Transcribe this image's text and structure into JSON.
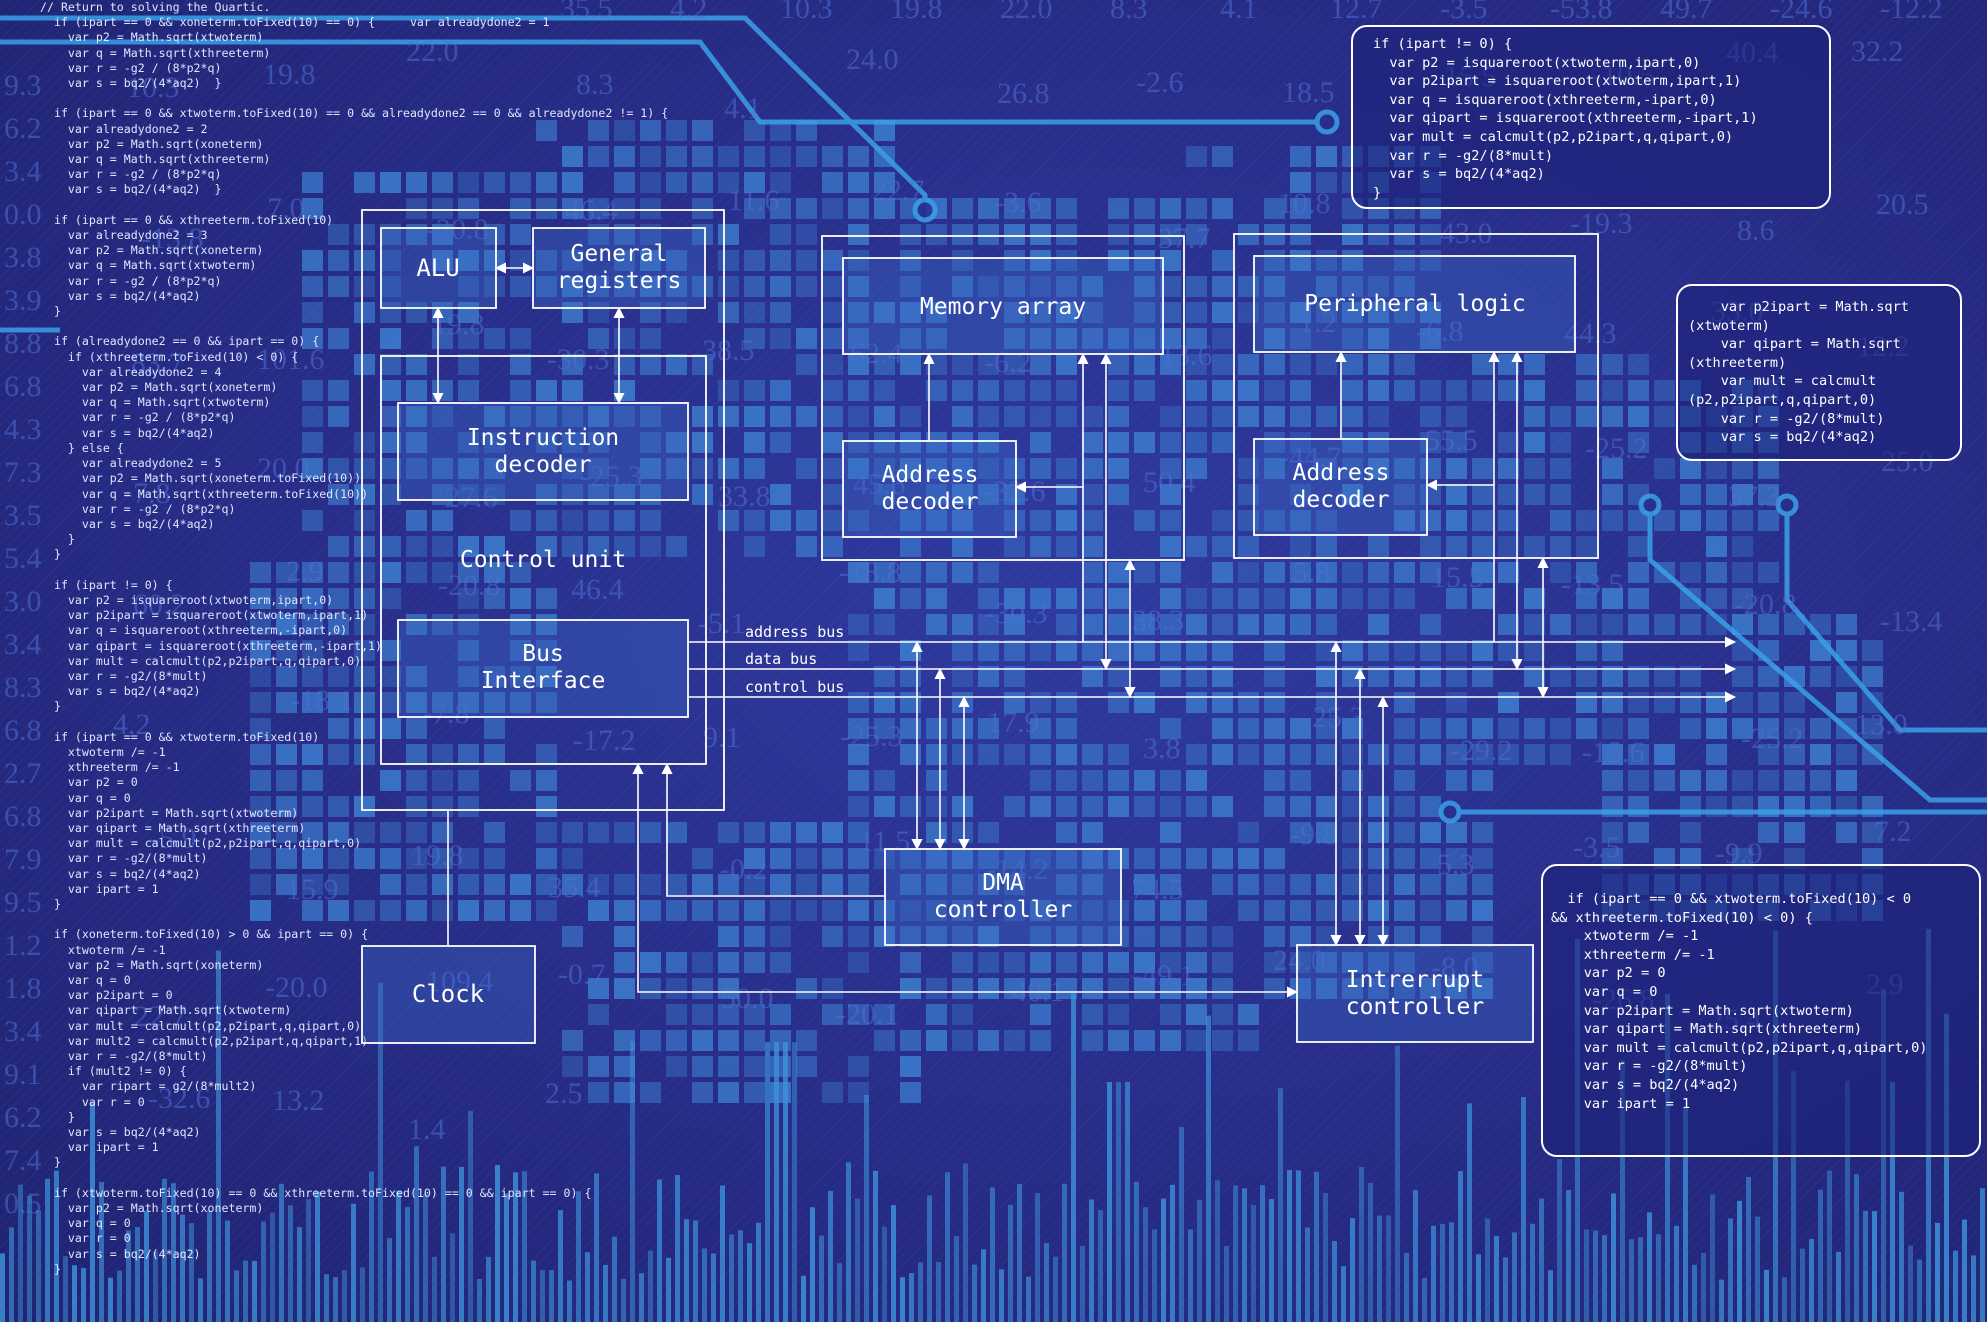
{
  "diagram": {
    "blocks": {
      "alu": "ALU",
      "general_registers": [
        "General",
        "registers"
      ],
      "instruction_decoder": [
        "Instruction",
        "decoder"
      ],
      "control_unit": "Control unit",
      "bus_interface": [
        "Bus",
        "Interface"
      ],
      "memory_array": "Memory array",
      "address_decoder_memory": [
        "Address",
        "decoder"
      ],
      "peripheral_logic": "Peripheral logic",
      "address_decoder_peripheral": [
        "Address",
        "decoder"
      ],
      "dma_controller": [
        "DMA",
        "controller"
      ],
      "clock": "Clock",
      "interrupt_controller": [
        "Intrerrupt",
        "controller"
      ]
    },
    "buses": {
      "address": "address bus",
      "data": "data bus",
      "control": "control bus"
    }
  },
  "code": {
    "left_panel": [
      "// Return to solving the Quartic.",
      "  if (ipart == 0 && xoneterm.toFixed(10) == 0) {     var alreadydone2 = 1",
      "    var p2 = Math.sqrt(xtwoterm)",
      "    var q = Math.sqrt(xthreeterm)",
      "    var r = -g2 / (8*p2*q)",
      "    var s = bq2/(4*aq2)  }",
      "",
      "  if (ipart == 0 && xtwoterm.toFixed(10) == 0 && alreadydone2 == 0 && alreadydone2 != 1) {",
      "    var alreadydone2 = 2",
      "    var p2 = Math.sqrt(xoneterm)",
      "    var q = Math.sqrt(xthreeterm)",
      "    var r = -g2 / (8*p2*q)",
      "    var s = bq2/(4*aq2)  }",
      "",
      "  if (ipart == 0 && xthreeterm.toFixed(10)",
      "    var alreadydone2 = 3",
      "    var p2 = Math.sqrt(xoneterm)",
      "    var q = Math.sqrt(xtwoterm)",
      "    var r = -g2 / (8*p2*q)",
      "    var s = bq2/(4*aq2)",
      "  }",
      "",
      "  if (alreadydone2 == 0 && ipart == 0) {",
      "    if (xthreeterm.toFixed(10) < 0) {",
      "      var alreadydone2 = 4",
      "      var p2 = Math.sqrt(xoneterm)",
      "      var q = Math.sqrt(xtwoterm)",
      "      var r = -g2 / (8*p2*q)",
      "      var s = bq2/(4*aq2)",
      "    } else {",
      "      var alreadydone2 = 5",
      "      var p2 = Math.sqrt(xoneterm.toFixed(10))",
      "      var q = Math.sqrt(xthreeterm.toFixed(10))",
      "      var r = -g2 / (8*p2*q)",
      "      var s = bq2/(4*aq2)",
      "    }",
      "  }",
      "",
      "  if (ipart != 0) {",
      "    var p2 = isquareroot(xtwoterm,ipart,0)",
      "    var p2ipart = isquareroot(xtwoterm,ipart,1)",
      "    var q = isquareroot(xthreeterm,-ipart,0)",
      "    var qipart = isquareroot(xthreeterm,-ipart,1)",
      "    var mult = calcmult(p2,p2ipart,q,qipart,0)",
      "    var r = -g2/(8*mult)",
      "    var s = bq2/(4*aq2)",
      "  }",
      "",
      "  if (ipart == 0 && xtwoterm.toFixed(10)",
      "    xtwoterm /= -1",
      "    xthreeterm /= -1",
      "    var p2 = 0",
      "    var q = 0",
      "    var p2ipart = Math.sqrt(xtwoterm)",
      "    var qipart = Math.sqrt(xthreeterm)",
      "    var mult = calcmult(p2,p2ipart,q,qipart,0)",
      "    var r = -g2/(8*mult)",
      "    var s = bq2/(4*aq2)",
      "    var ipart = 1",
      "  }",
      "",
      "  if (xoneterm.toFixed(10) > 0 && ipart == 0) {",
      "    xtwoterm /= -1",
      "    var p2 = Math.sqrt(xoneterm)",
      "    var q = 0",
      "    var p2ipart = 0",
      "    var qipart = Math.sqrt(xtwoterm)",
      "    var mult = calcmult(p2,p2ipart,q,qipart,0)",
      "    var mult2 = calcmult(p2,p2ipart,q,qipart,1)",
      "    var r = -g2/(8*mult)",
      "    if (mult2 != 0) {",
      "      var ripart = g2/(8*mult2)",
      "      var r = 0",
      "    }",
      "    var s = bq2/(4*aq2)",
      "    var ipart = 1",
      "  }",
      "",
      "  if (xtwoterm.toFixed(10) == 0 && xthreeterm.toFixed(10) == 0 && ipart == 0) {",
      "    var p2 = Math.sqrt(xoneterm)",
      "    var q = 0",
      "    var r = 0",
      "    var s = bq2/(4*aq2)",
      "  }"
    ],
    "box_top_right": [
      "if (ipart != 0) {",
      "  var p2 = isquareroot(xtwoterm,ipart,0)",
      "  var p2ipart = isquareroot(xtwoterm,ipart,1)",
      "  var q = isquareroot(xthreeterm,-ipart,0)",
      "  var qipart = isquareroot(xthreeterm,-ipart,1)",
      "  var mult = calcmult(p2,p2ipart,q,qipart,0)",
      "  var r = -g2/(8*mult)",
      "  var s = bq2/(4*aq2)",
      "}"
    ],
    "box_mid_right": [
      "    var p2ipart = Math.sqrt",
      "(xtwoterm)",
      "    var qipart = Math.sqrt",
      "(xthreeterm)",
      "    var mult = calcmult",
      "(p2,p2ipart,q,qipart,0)",
      "    var r = -g2/(8*mult)",
      "    var s = bq2/(4*aq2)"
    ],
    "box_bottom_right": [
      "  if (ipart == 0 && xtwoterm.toFixed(10) < 0",
      "&& xthreeterm.toFixed(10) < 0) {",
      "    xtwoterm /= -1",
      "    xthreeterm /= -1",
      "    var p2 = 0",
      "    var q = 0",
      "    var p2ipart = Math.sqrt(xtwoterm)",
      "    var qipart = Math.sqrt(xthreeterm)",
      "    var mult = calcmult(p2,p2ipart,q,qipart,0)",
      "    var r = -g2/(8*mult)",
      "    var s = bq2/(4*aq2)",
      "    var ipart = 1"
    ]
  },
  "background_numbers": {
    "left_column": [
      "9.3",
      "6.2",
      "3.4",
      "0.0",
      "3.8",
      "3.9",
      "8.8",
      "6.8",
      "4.3",
      "7.3",
      "3.5",
      "5.4",
      "3.0",
      "3.4",
      "8.3",
      "6.8",
      "2.7",
      "6.8",
      "7.9",
      "9.5",
      "1.2",
      "1.8",
      "3.4",
      "9.1",
      "6.2",
      "7.4",
      "0.5"
    ],
    "scattered": [
      "10.3",
      "19.8",
      "22.0",
      "8.3",
      "4.1",
      "24.0",
      "26.8",
      "-2.6",
      "18.5",
      "15.5",
      "-10.5",
      "40.4",
      "32.2",
      "-13.8",
      "7.0",
      "-20.8",
      "46.4",
      "11.6",
      "22.7",
      "-3.6",
      "37.7",
      "10.8",
      "43.0",
      "-19.3",
      "8.6",
      "20.5",
      "83.7",
      "101.6",
      "19.8",
      "-30.3",
      "38.5",
      "62.4",
      "-6.2",
      "13.6",
      "1.2",
      "-6.8",
      "44.3",
      "33.0",
      "12.2",
      "-7.8",
      "20.0",
      "-27.6",
      "-25.3",
      "33.8",
      "45.6",
      "-32.6",
      "50.4",
      "-44.7",
      "55.5",
      "-25.2",
      "37.3",
      "25.0",
      "60.2",
      "2.9",
      "-20.8",
      "46.4",
      "-5.1",
      "-18.8",
      "-30.3",
      "38.3",
      "5.8",
      "15.5",
      "-13.5",
      "-20.8",
      "-13.4",
      "4.2",
      "-18.1",
      "-7.8",
      "-17.2",
      "9.1",
      "-25.3",
      "17.9",
      "3.8",
      "-25.3",
      "-29.2",
      "-15.6",
      "-25.2",
      "13.0",
      "-5.9",
      "15.9",
      "19.8",
      "35.4",
      "-0.2",
      "11.5",
      "-14.2",
      "74.5",
      "-9.8",
      "5.3",
      "-3.5",
      "-9.9",
      "7.2",
      "22.7",
      "-20.0",
      "109.4",
      "-0.7",
      "50.0",
      "-20.1",
      "40.1",
      "-49.1",
      "24.0",
      "-8.0",
      "-26.8",
      "25.4",
      "2.9",
      "-32.6",
      "13.2",
      "1.4",
      "2.5"
    ],
    "top_row": [
      "35.5",
      "4.2",
      "10.3",
      "19.8",
      "22.0",
      "8.3",
      "4.1",
      "12.7",
      "-3.5",
      "-53.8",
      "49.7",
      "-24.6",
      "-12.2"
    ]
  },
  "colors": {
    "background": "#2a2f8c",
    "tile": "#3d7fd0",
    "line": "#ffffff",
    "circuit": "#3aa0e8",
    "bars": "#3e92dc"
  }
}
